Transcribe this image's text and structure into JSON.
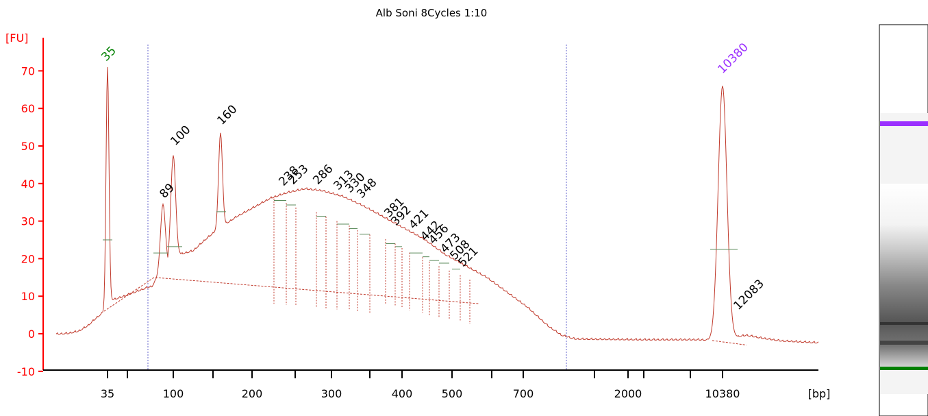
{
  "chart_data": {
    "type": "line",
    "title": "Alb Soni 8Cycles 1:10",
    "ylabel": "[FU]",
    "xlabel": "[bp]",
    "ylim": [
      -10,
      75
    ],
    "y_ticks": [
      -10,
      0,
      10,
      20,
      30,
      40,
      50,
      60,
      70
    ],
    "x_ticks": [
      "35",
      "100",
      "200",
      "300",
      "400",
      "500",
      "700",
      "2000",
      "10380"
    ],
    "colors": {
      "trace": "#c0392b",
      "axis": "#ff0000",
      "lower_marker": "#008000",
      "upper_marker": "#9b30ff",
      "text": "#000000"
    },
    "markers": [
      {
        "label": "35",
        "type": "lower",
        "fu": 71
      },
      {
        "label": "10380",
        "type": "upper",
        "fu": 66
      }
    ],
    "peaks": [
      {
        "label": "89",
        "fu": 34.5
      },
      {
        "label": "100",
        "fu": 47.5
      },
      {
        "label": "160",
        "fu": 53.5
      },
      {
        "label": "238",
        "fu": 37.5
      },
      {
        "label": "253",
        "fu": 37.5
      },
      {
        "label": "286",
        "fu": 38.5
      },
      {
        "label": "313",
        "fu": 36.5
      },
      {
        "label": "330",
        "fu": 35.5
      },
      {
        "label": "348",
        "fu": 34.5
      },
      {
        "label": "381",
        "fu": 31
      },
      {
        "label": "392",
        "fu": 29.5
      },
      {
        "label": "421",
        "fu": 27
      },
      {
        "label": "442",
        "fu": 24
      },
      {
        "label": "456",
        "fu": 23
      },
      {
        "label": "473",
        "fu": 21.5
      },
      {
        "label": "508",
        "fu": 19.5
      },
      {
        "label": "521",
        "fu": 18.5
      },
      {
        "label": "12083",
        "fu": 4
      }
    ],
    "gel": {
      "bands": [
        "upper-marker",
        "sample-smear",
        "lower-marker"
      ]
    }
  }
}
